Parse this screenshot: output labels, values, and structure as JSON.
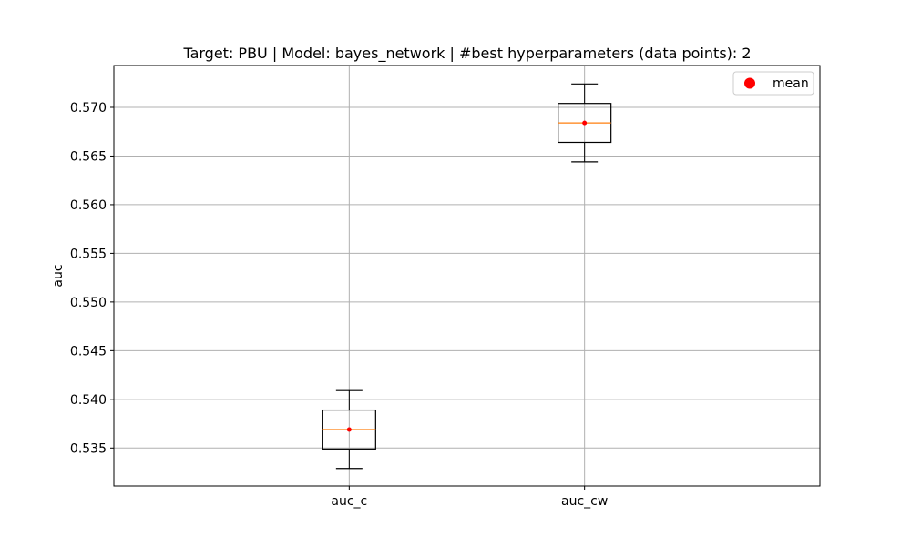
{
  "chart_data": {
    "type": "box",
    "title": "Target: PBU | Model: bayes_network | #best hyperparameters (data points): 2",
    "xlabel": "",
    "ylabel": "auc",
    "categories": [
      "auc_c",
      "auc_cw"
    ],
    "ylim": [
      0.5311,
      0.5743
    ],
    "yticks": [
      0.535,
      0.54,
      0.545,
      0.55,
      0.555,
      0.56,
      0.565,
      0.57
    ],
    "ytick_labels": [
      "0.535",
      "0.540",
      "0.545",
      "0.550",
      "0.555",
      "0.560",
      "0.565",
      "0.570"
    ],
    "grid": true,
    "legend": {
      "placement": "top-right",
      "entries": [
        {
          "label": "mean",
          "color": "#ff0000",
          "marker": "circle"
        }
      ]
    },
    "boxes": [
      {
        "category": "auc_c",
        "whisker_low": 0.5329,
        "q1": 0.5349,
        "median": 0.5369,
        "q3": 0.5389,
        "whisker_high": 0.5409,
        "mean": 0.5369
      },
      {
        "category": "auc_cw",
        "whisker_low": 0.5644,
        "q1": 0.5664,
        "median": 0.5684,
        "q3": 0.5704,
        "whisker_high": 0.5724,
        "mean": 0.5684
      }
    ],
    "colors": {
      "box": "#000000",
      "median": "#ff7f0e",
      "mean": "#ff0000",
      "grid": "#b0b0b0"
    }
  }
}
